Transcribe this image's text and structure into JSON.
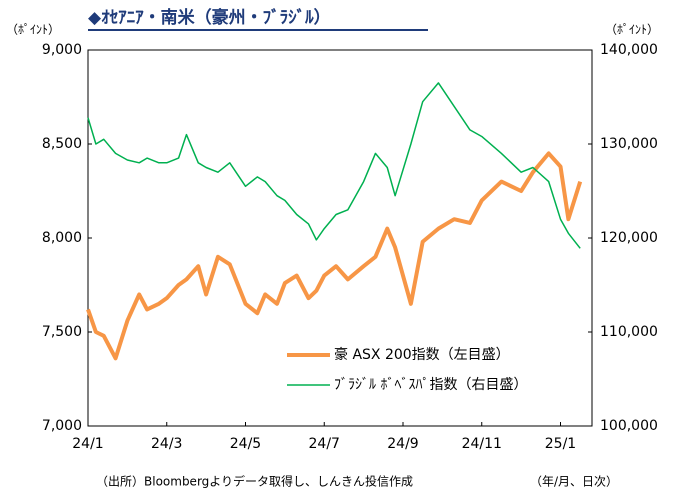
{
  "chart_data": {
    "type": "line",
    "title": "◆ｵｾｱﾆｱ・南米（豪州・ﾌﾞﾗｼﾞﾙ）",
    "y_label": "（ﾎﾟｲﾝﾄ）",
    "y2_label": "（ﾎﾟｲﾝﾄ）",
    "source": "（出所）Bloombergよりデータ取得し、しんきん投信作成",
    "x_label": "（年/月、日次）",
    "x": [
      0,
      0.2,
      0.4,
      0.7,
      1,
      1.3,
      1.5,
      1.8,
      2,
      2.3,
      2.5,
      2.8,
      3,
      3.3,
      3.6,
      4,
      4.3,
      4.5,
      4.8,
      5,
      5.3,
      5.6,
      5.8,
      6,
      6.3,
      6.6,
      7,
      7.3,
      7.6,
      7.8,
      8.2,
      8.5,
      8.9,
      9.3,
      9.7,
      10,
      10.5,
      11,
      11.3,
      11.7,
      12,
      12.2,
      12.5
    ],
    "xlim": [
      0,
      12.8
    ],
    "xticks": [
      {
        "value": 0,
        "label": "24/1"
      },
      {
        "value": 2,
        "label": "24/3"
      },
      {
        "value": 4,
        "label": "24/5"
      },
      {
        "value": 6,
        "label": "24/7"
      },
      {
        "value": 8,
        "label": "24/9"
      },
      {
        "value": 10,
        "label": "24/11"
      },
      {
        "value": 12,
        "label": "25/1"
      }
    ],
    "ylim": [
      7000,
      9000
    ],
    "yticks": [
      {
        "value": 7000,
        "label": "7,000"
      },
      {
        "value": 7500,
        "label": "7,500"
      },
      {
        "value": 8000,
        "label": "8,000"
      },
      {
        "value": 8500,
        "label": "8,500"
      },
      {
        "value": 9000,
        "label": "9,000"
      }
    ],
    "y2lim": [
      100000,
      140000
    ],
    "y2ticks": [
      {
        "value": 100000,
        "label": "100,000"
      },
      {
        "value": 110000,
        "label": "110,000"
      },
      {
        "value": 120000,
        "label": "120,000"
      },
      {
        "value": 130000,
        "label": "130,000"
      },
      {
        "value": 140000,
        "label": "140,000"
      }
    ],
    "series": [
      {
        "name": "豪 ASX 200指数（左目盛）",
        "color": "#f79646",
        "axis": "y",
        "values": [
          7620,
          7500,
          7480,
          7360,
          7560,
          7700,
          7620,
          7650,
          7680,
          7750,
          7780,
          7850,
          7700,
          7900,
          7860,
          7650,
          7600,
          7700,
          7650,
          7760,
          7800,
          7680,
          7720,
          7800,
          7850,
          7780,
          7850,
          7900,
          8050,
          7950,
          7650,
          7980,
          8050,
          8100,
          8080,
          8200,
          8300,
          8250,
          8350,
          8450,
          8380,
          8100,
          8300
        ]
      },
      {
        "name": "ﾌﾞﾗｼﾞﾙ ﾎﾞﾍﾞｽﾊﾟ指数（右目盛）",
        "color": "#00b050",
        "axis": "y2",
        "values": [
          132800,
          130000,
          130500,
          129000,
          128300,
          128000,
          128500,
          128000,
          128000,
          128500,
          131000,
          128000,
          127500,
          127000,
          128000,
          125500,
          126500,
          126000,
          124500,
          124000,
          122500,
          121500,
          119800,
          121000,
          122500,
          123000,
          126000,
          129000,
          127500,
          124500,
          130000,
          134500,
          136500,
          134000,
          131500,
          130800,
          129000,
          127000,
          127500,
          126000,
          122000,
          120500,
          118900
        ]
      }
    ]
  }
}
